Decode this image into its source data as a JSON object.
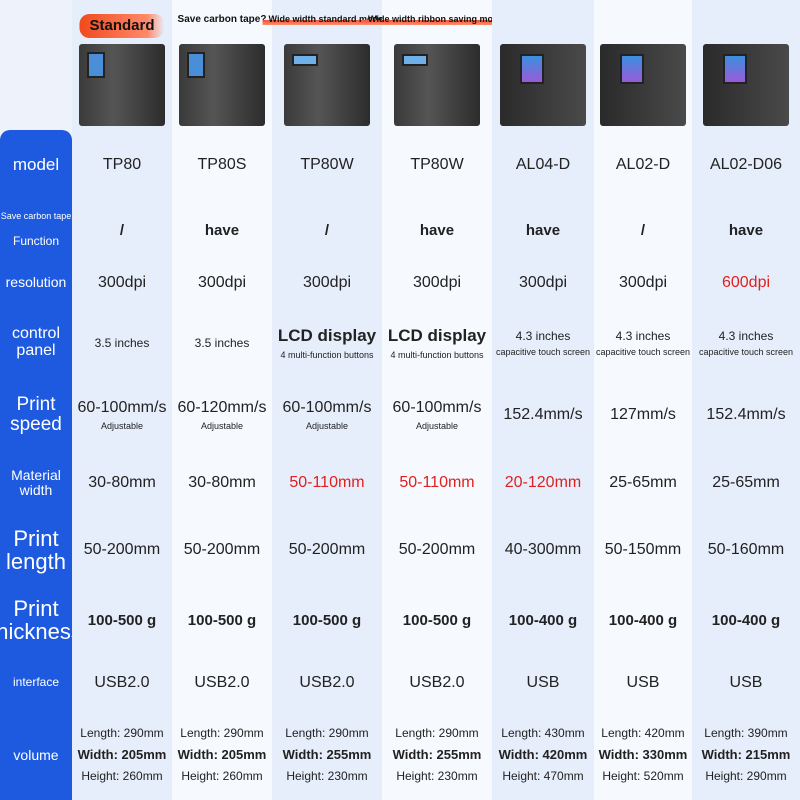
{
  "products": [
    {
      "tag": "Standard",
      "tag_style": "red",
      "printer": "p"
    },
    {
      "tag": "Save carbon tape?",
      "tag_style": "plain",
      "printer": "p"
    },
    {
      "tag": "Wide width standard model",
      "tag_style": "bar",
      "printer": "w"
    },
    {
      "tag": "Wide width ribbon saving model",
      "tag_style": "bar",
      "printer": "w"
    },
    {
      "tag": "",
      "printer": "t"
    },
    {
      "tag": "",
      "printer": "t"
    },
    {
      "tag": "",
      "printer": "t"
    }
  ],
  "accent": "#1d5ae0",
  "highlight": "#e02020",
  "rows": [
    {
      "label": [
        "model"
      ],
      "lsize": 17,
      "cells": [
        [
          "TP80"
        ],
        [
          "TP80S"
        ],
        [
          "TP80W"
        ],
        [
          "TP80W"
        ],
        [
          "AL04-D"
        ],
        [
          "AL02-D"
        ],
        [
          "AL02-D06"
        ]
      ]
    },
    {
      "label": [
        "Save carbon tape",
        "Function"
      ],
      "lsize": 12,
      "style": "bold",
      "cells": [
        [
          "/"
        ],
        [
          "have"
        ],
        [
          "/"
        ],
        [
          "have"
        ],
        [
          "have"
        ],
        [
          "/"
        ],
        [
          "have"
        ]
      ]
    },
    {
      "label": [
        "resolution"
      ],
      "lsize": 14,
      "cells": [
        [
          "300dpi"
        ],
        [
          "300dpi"
        ],
        [
          "300dpi"
        ],
        [
          "300dpi"
        ],
        [
          "300dpi"
        ],
        [
          "300dpi"
        ],
        [
          "600dpi"
        ]
      ],
      "hl": [
        6
      ]
    },
    {
      "label": [
        "control",
        "panel"
      ],
      "lsize": 16,
      "cells": [
        [
          "3.5 inches"
        ],
        [
          "3.5 inches"
        ],
        [
          "LCD display",
          "4 multi-function buttons"
        ],
        [
          "LCD display",
          "4 multi-function buttons"
        ],
        [
          "4.3 inches",
          "capacitive touch screen"
        ],
        [
          "4.3 inches",
          "capacitive touch screen"
        ],
        [
          "4.3 inches",
          "capacitive touch screen"
        ]
      ]
    },
    {
      "label": [
        "Print",
        "speed"
      ],
      "lsize": 19,
      "cells": [
        [
          "60-100mm/s",
          "Adjustable"
        ],
        [
          "60-120mm/s",
          "Adjustable"
        ],
        [
          "60-100mm/s",
          "Adjustable"
        ],
        [
          "60-100mm/s",
          "Adjustable"
        ],
        [
          "152.4mm/s"
        ],
        [
          "127mm/s"
        ],
        [
          "152.4mm/s"
        ]
      ]
    },
    {
      "label": [
        "Material",
        "width"
      ],
      "lsize": 14,
      "cells": [
        [
          "30-80mm"
        ],
        [
          "30-80mm"
        ],
        [
          "50-110mm"
        ],
        [
          "50-110mm"
        ],
        [
          "20-120mm"
        ],
        [
          "25-65mm"
        ],
        [
          "25-65mm"
        ]
      ],
      "hl": [
        2,
        3,
        4
      ]
    },
    {
      "label": [
        "Print",
        "length"
      ],
      "lsize": 22,
      "cells": [
        [
          "50-200mm"
        ],
        [
          "50-200mm"
        ],
        [
          "50-200mm"
        ],
        [
          "50-200mm"
        ],
        [
          "40-300mm"
        ],
        [
          "50-150mm"
        ],
        [
          "50-160mm"
        ]
      ]
    },
    {
      "label": [
        "Print",
        "thickness"
      ],
      "lsize": 22,
      "style": "bold",
      "cells": [
        [
          "100-500 g"
        ],
        [
          "100-500 g"
        ],
        [
          "100-500 g"
        ],
        [
          "100-500 g"
        ],
        [
          "100-400 g"
        ],
        [
          "100-400 g"
        ],
        [
          "100-400 g"
        ]
      ]
    },
    {
      "label": [
        "interface"
      ],
      "lsize": 12,
      "cells": [
        [
          "USB2.0"
        ],
        [
          "USB2.0"
        ],
        [
          "USB2.0"
        ],
        [
          "USB2.0"
        ],
        [
          "USB"
        ],
        [
          "USB"
        ],
        [
          "USB"
        ]
      ]
    },
    {
      "label": [
        "volume"
      ],
      "lsize": 14,
      "style": "vol",
      "cells": [
        [
          "Length: 290mm",
          "Width: 205mm",
          "Height: 260mm"
        ],
        [
          "Length: 290mm",
          "Width: 205mm",
          "Height: 260mm"
        ],
        [
          "Length: 290mm",
          "Width: 255mm",
          "Height: 230mm"
        ],
        [
          "Length: 290mm",
          "Width: 255mm",
          "Height: 230mm"
        ],
        [
          "Length: 430mm",
          "Width: 420mm",
          "Height: 470mm"
        ],
        [
          "Length: 420mm",
          "Width: 330mm",
          "Height: 520mm"
        ],
        [
          "Length: 390mm",
          "Width: 215mm",
          "Height: 290mm"
        ]
      ]
    }
  ]
}
